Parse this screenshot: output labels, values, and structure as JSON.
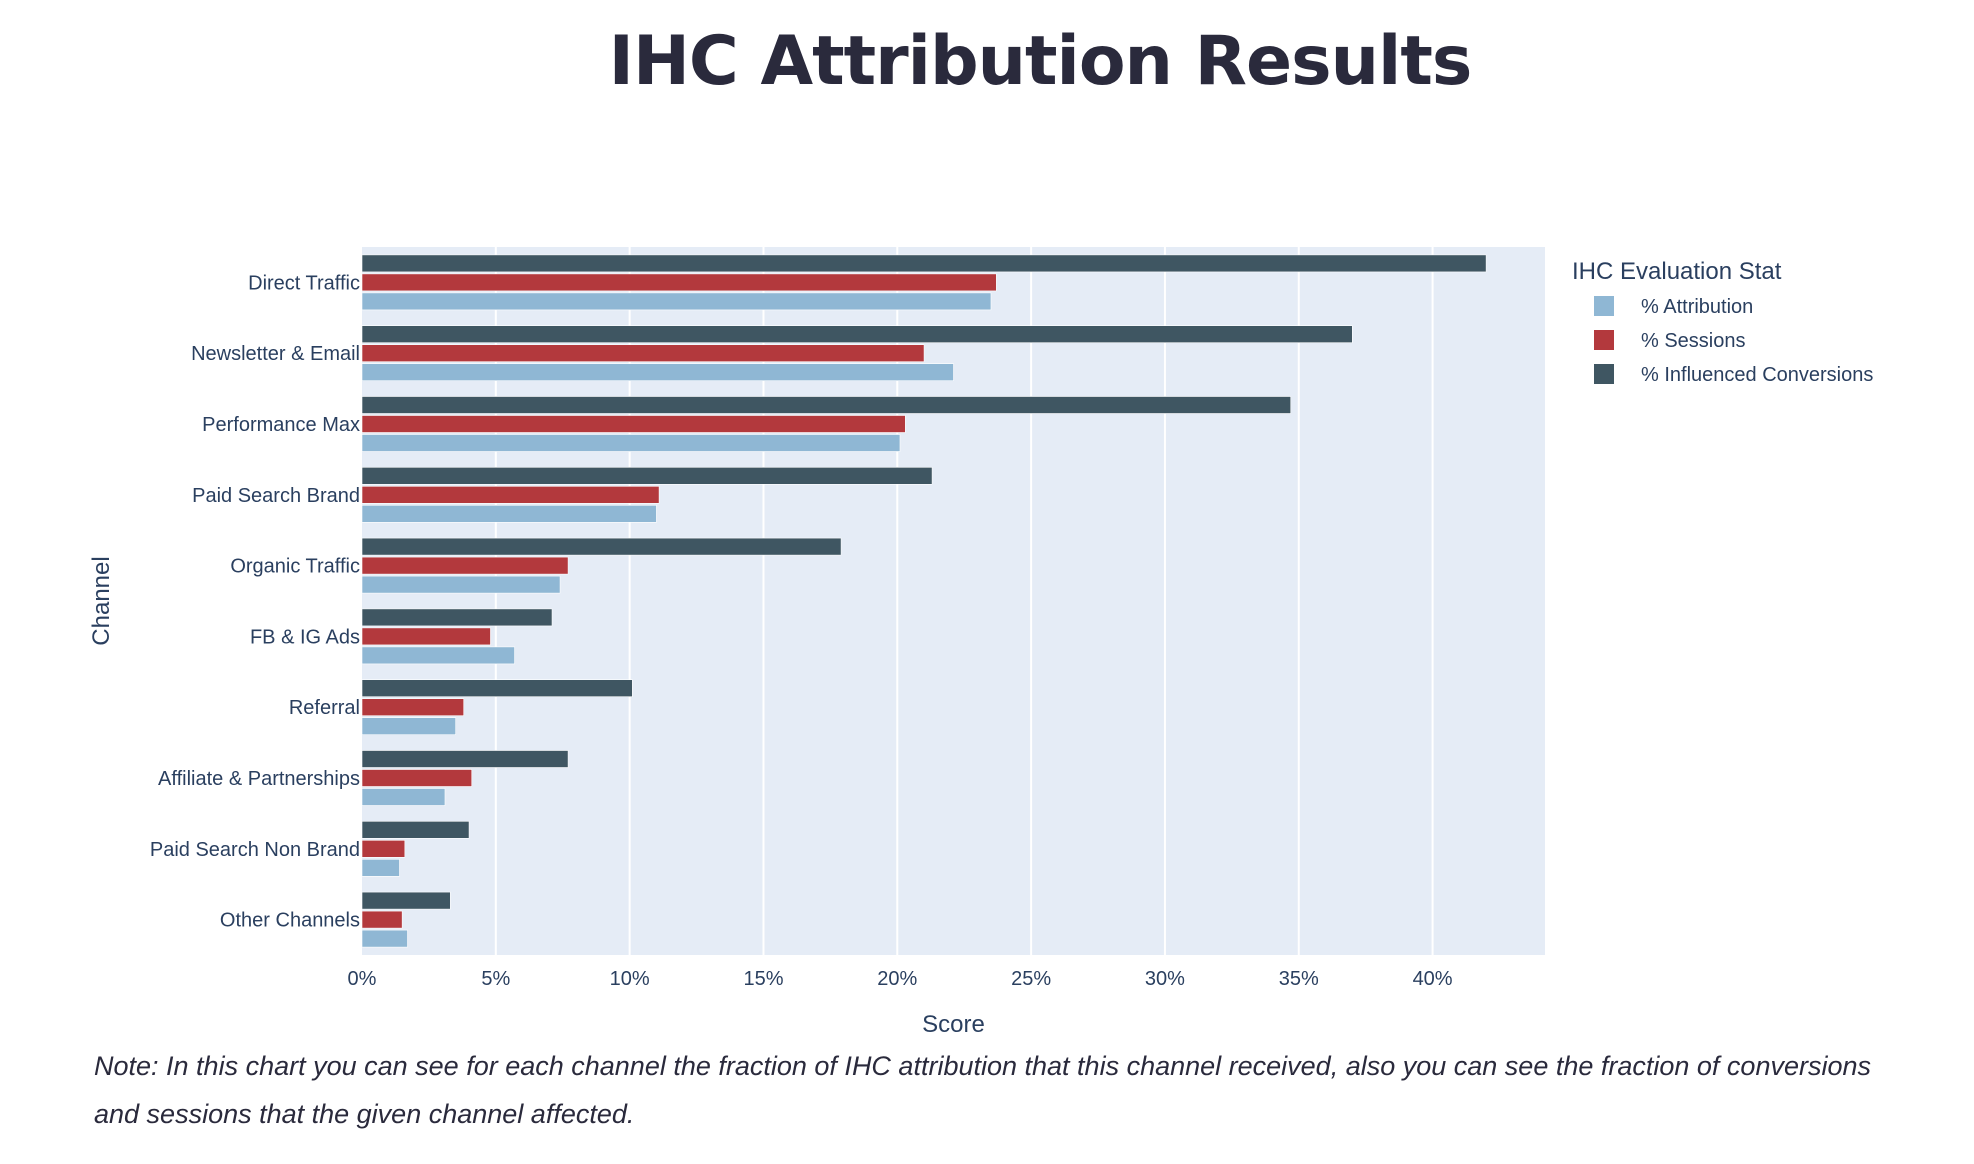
{
  "page": {
    "title": "IHC Attribution Results",
    "note": "Note: In this chart you can see for each channel the fraction of IHC attribution that this channel received, also you can see the fraction of conversions and sessions that the given channel affected."
  },
  "colors": {
    "plot_bg": "#e5ecf6",
    "grid": "#ffffff",
    "attribution": "#8fb7d4",
    "sessions": "#b3393d",
    "influenced": "#3f5662",
    "axis_text": "#2a3f5f"
  },
  "chart_data": {
    "type": "bar",
    "orientation": "horizontal",
    "xlabel": "Score",
    "ylabel": "Channel",
    "xlim": [
      0,
      44.2
    ],
    "x_ticks": [
      0,
      5,
      10,
      15,
      20,
      25,
      30,
      35,
      40
    ],
    "x_tick_labels": [
      "0%",
      "5%",
      "10%",
      "15%",
      "20%",
      "25%",
      "30%",
      "35%",
      "40%"
    ],
    "grid": true,
    "legend": {
      "title": "IHC Evaluation Stat",
      "placement": "top-right-outside"
    },
    "categories": [
      "Direct Traffic",
      "Newsletter & Email",
      "Performance Max",
      "Paid Search Brand",
      "Organic Traffic",
      "FB & IG Ads",
      "Referral",
      "Affiliate & Partnerships",
      "Paid Search Non Brand",
      "Other Channels"
    ],
    "series": [
      {
        "name": "% Attribution",
        "color_key": "attribution",
        "values": [
          23.5,
          22.1,
          20.1,
          11.0,
          7.4,
          5.7,
          3.5,
          3.1,
          1.4,
          1.7
        ]
      },
      {
        "name": "% Sessions",
        "color_key": "sessions",
        "values": [
          23.7,
          21.0,
          20.3,
          11.1,
          7.7,
          4.8,
          3.8,
          4.1,
          1.6,
          1.5
        ]
      },
      {
        "name": "% Influenced Conversions",
        "color_key": "influenced",
        "values": [
          42.0,
          37.0,
          34.7,
          21.3,
          17.9,
          7.1,
          10.1,
          7.7,
          4.0,
          3.3
        ]
      }
    ]
  }
}
